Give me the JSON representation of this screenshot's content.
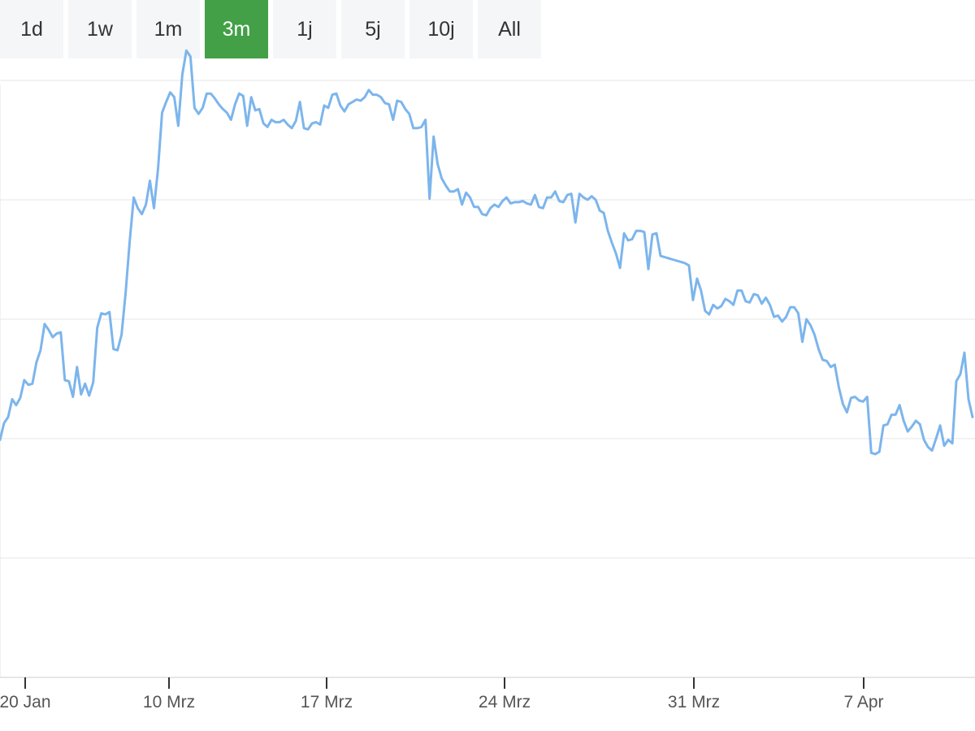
{
  "range_selector": {
    "buttons": [
      "1d",
      "1w",
      "1m",
      "3m",
      "1j",
      "5j",
      "10j",
      "All"
    ],
    "selected": "3m",
    "active_color": "#43a047"
  },
  "chart_data": {
    "type": "line",
    "title": "",
    "xlabel": "",
    "ylabel": "",
    "line_color": "#7cb5ec",
    "grid": true,
    "y_tick_labels_shown": false,
    "x_ticks": [
      "20 Jan",
      "10 Mrz",
      "17 Mrz",
      "24 Mrz",
      "31 Mrz",
      "7 Apr"
    ],
    "series": [
      {
        "values": [
          1.99,
          2.13,
          2.18,
          2.33,
          2.28,
          2.34,
          2.49,
          2.45,
          2.46,
          2.64,
          2.74,
          2.96,
          2.91,
          2.85,
          2.88,
          2.89,
          2.49,
          2.48,
          2.35,
          2.6,
          2.37,
          2.46,
          2.36,
          2.47,
          2.93,
          3.05,
          3.04,
          3.06,
          2.75,
          2.74,
          2.87,
          3.22,
          3.65,
          4.02,
          3.93,
          3.88,
          3.96,
          4.16,
          3.93,
          4.26,
          4.73,
          4.82,
          4.9,
          4.86,
          4.62,
          5.05,
          5.25,
          5.2,
          4.77,
          4.72,
          4.77,
          4.89,
          4.89,
          4.85,
          4.8,
          4.76,
          4.73,
          4.67,
          4.8,
          4.89,
          4.87,
          4.62,
          4.86,
          4.75,
          4.76,
          4.64,
          4.61,
          4.67,
          4.65,
          4.65,
          4.67,
          4.63,
          4.6,
          4.66,
          4.82,
          4.6,
          4.59,
          4.64,
          4.65,
          4.63,
          4.79,
          4.77,
          4.88,
          4.89,
          4.79,
          4.74,
          4.8,
          4.82,
          4.84,
          4.83,
          4.86,
          4.92,
          4.88,
          4.88,
          4.86,
          4.81,
          4.8,
          4.67,
          4.83,
          4.82,
          4.76,
          4.72,
          4.6,
          4.6,
          4.61,
          4.67,
          4.01,
          4.53,
          4.3,
          4.18,
          4.12,
          4.07,
          4.07,
          4.09,
          3.96,
          4.06,
          4.02,
          3.94,
          3.94,
          3.88,
          3.87,
          3.93,
          3.96,
          3.94,
          3.99,
          4.02,
          3.97,
          3.98,
          3.98,
          3.99,
          3.97,
          3.96,
          4.04,
          3.94,
          3.93,
          4.02,
          4.02,
          4.07,
          3.99,
          3.98,
          4.04,
          4.05,
          3.81,
          4.05,
          4.02,
          4.0,
          4.03,
          4.0,
          3.91,
          3.89,
          3.74,
          3.64,
          3.55,
          3.43,
          3.72,
          3.66,
          3.67,
          3.74,
          3.74,
          3.73,
          3.42,
          3.71,
          3.72,
          3.53,
          3.52,
          3.51,
          3.5,
          3.49,
          3.48,
          3.47,
          3.45,
          3.16,
          3.34,
          3.24,
          3.07,
          3.04,
          3.12,
          3.09,
          3.11,
          3.17,
          3.15,
          3.12,
          3.24,
          3.24,
          3.15,
          3.14,
          3.21,
          3.2,
          3.13,
          3.18,
          3.12,
          3.02,
          3.03,
          2.98,
          3.02,
          3.1,
          3.1,
          3.05,
          2.81,
          3.0,
          2.95,
          2.87,
          2.75,
          2.66,
          2.65,
          2.6,
          2.62,
          2.43,
          2.29,
          2.22,
          2.34,
          2.35,
          2.32,
          2.31,
          2.35,
          1.88,
          1.87,
          1.89,
          2.11,
          2.12,
          2.2,
          2.2,
          2.28,
          2.15,
          2.06,
          2.1,
          2.15,
          2.12,
          1.99,
          1.93,
          1.9,
          2.0,
          2.11,
          1.94,
          1.99,
          1.96,
          2.48,
          2.54,
          2.72,
          2.33,
          2.18
        ]
      }
    ]
  }
}
